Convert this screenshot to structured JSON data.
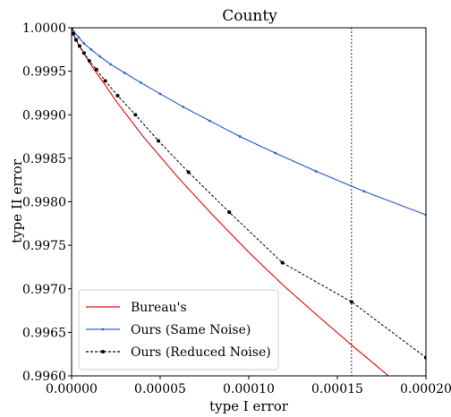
{
  "chart_data": {
    "type": "line",
    "title": "County",
    "xlabel": "type I error",
    "ylabel": "type II error",
    "xlim": [
      0.0,
      0.0002
    ],
    "ylim": [
      0.996,
      1.0
    ],
    "x_ticks": [
      0.0,
      5e-05,
      0.0001,
      0.00015,
      0.0002
    ],
    "x_tick_labels": [
      "0.00000",
      "0.00005",
      "0.00010",
      "0.00015",
      "0.00020"
    ],
    "y_ticks": [
      0.996,
      0.9965,
      0.997,
      0.9975,
      0.998,
      0.9985,
      0.999,
      0.9995,
      1.0
    ],
    "y_tick_labels": [
      "0.9960",
      "0.9965",
      "0.9970",
      "0.9975",
      "0.9980",
      "0.9985",
      "0.9990",
      "0.9995",
      "1.0000"
    ],
    "vline_x": 0.000158,
    "legend_position": "lower-left",
    "grid": false,
    "series": [
      {
        "name": "Bureau's",
        "color": "#e41a1c",
        "style": "solid",
        "markers": false,
        "x": [
          0.0,
          1e-06,
          3e-06,
          5e-06,
          8e-06,
          1.2e-05,
          1.8e-05,
          2.5e-05,
          4e-05,
          6e-05,
          8e-05,
          0.0001,
          0.00012,
          0.00014,
          0.00016,
          0.00018,
          0.0002
        ],
        "y": [
          1.0,
          0.99993,
          0.99984,
          0.99977,
          0.99967,
          0.99954,
          0.99937,
          0.99916,
          0.99876,
          0.99828,
          0.99784,
          0.99742,
          0.99703,
          0.99667,
          0.99632,
          0.99598,
          0.99565
        ]
      },
      {
        "name": "Ours (Same Noise)",
        "color": "#3366cc",
        "style": "solid",
        "markers": true,
        "x": [
          0.0,
          1.5e-06,
          4e-06,
          7e-06,
          1.1e-05,
          1.6e-05,
          2.2e-05,
          3e-05,
          3.9e-05,
          5e-05,
          6.3e-05,
          7.8e-05,
          9.5e-05,
          0.000115,
          0.000138,
          0.000165,
          0.0002
        ],
        "y": [
          1.0,
          0.99995,
          0.99989,
          0.99982,
          0.99975,
          0.99967,
          0.99958,
          0.99948,
          0.99937,
          0.99924,
          0.99909,
          0.99893,
          0.99875,
          0.99856,
          0.99835,
          0.99812,
          0.99785
        ]
      },
      {
        "name": "Ours (Reduced Noise)",
        "color": "#000000",
        "style": "dashed",
        "markers": true,
        "x": [
          0.0,
          1e-06,
          2.5e-06,
          4.5e-06,
          7e-06,
          1e-05,
          1.4e-05,
          1.9e-05,
          2.6e-05,
          3.6e-05,
          4.9e-05,
          6.6e-05,
          8.9e-05,
          0.000119,
          0.000158,
          0.0002
        ],
        "y": [
          1.0,
          0.99993,
          0.99986,
          0.99979,
          0.99971,
          0.99962,
          0.99952,
          0.99939,
          0.99922,
          0.999,
          0.9987,
          0.99834,
          0.99788,
          0.9973,
          0.99685,
          0.99621
        ]
      }
    ]
  }
}
